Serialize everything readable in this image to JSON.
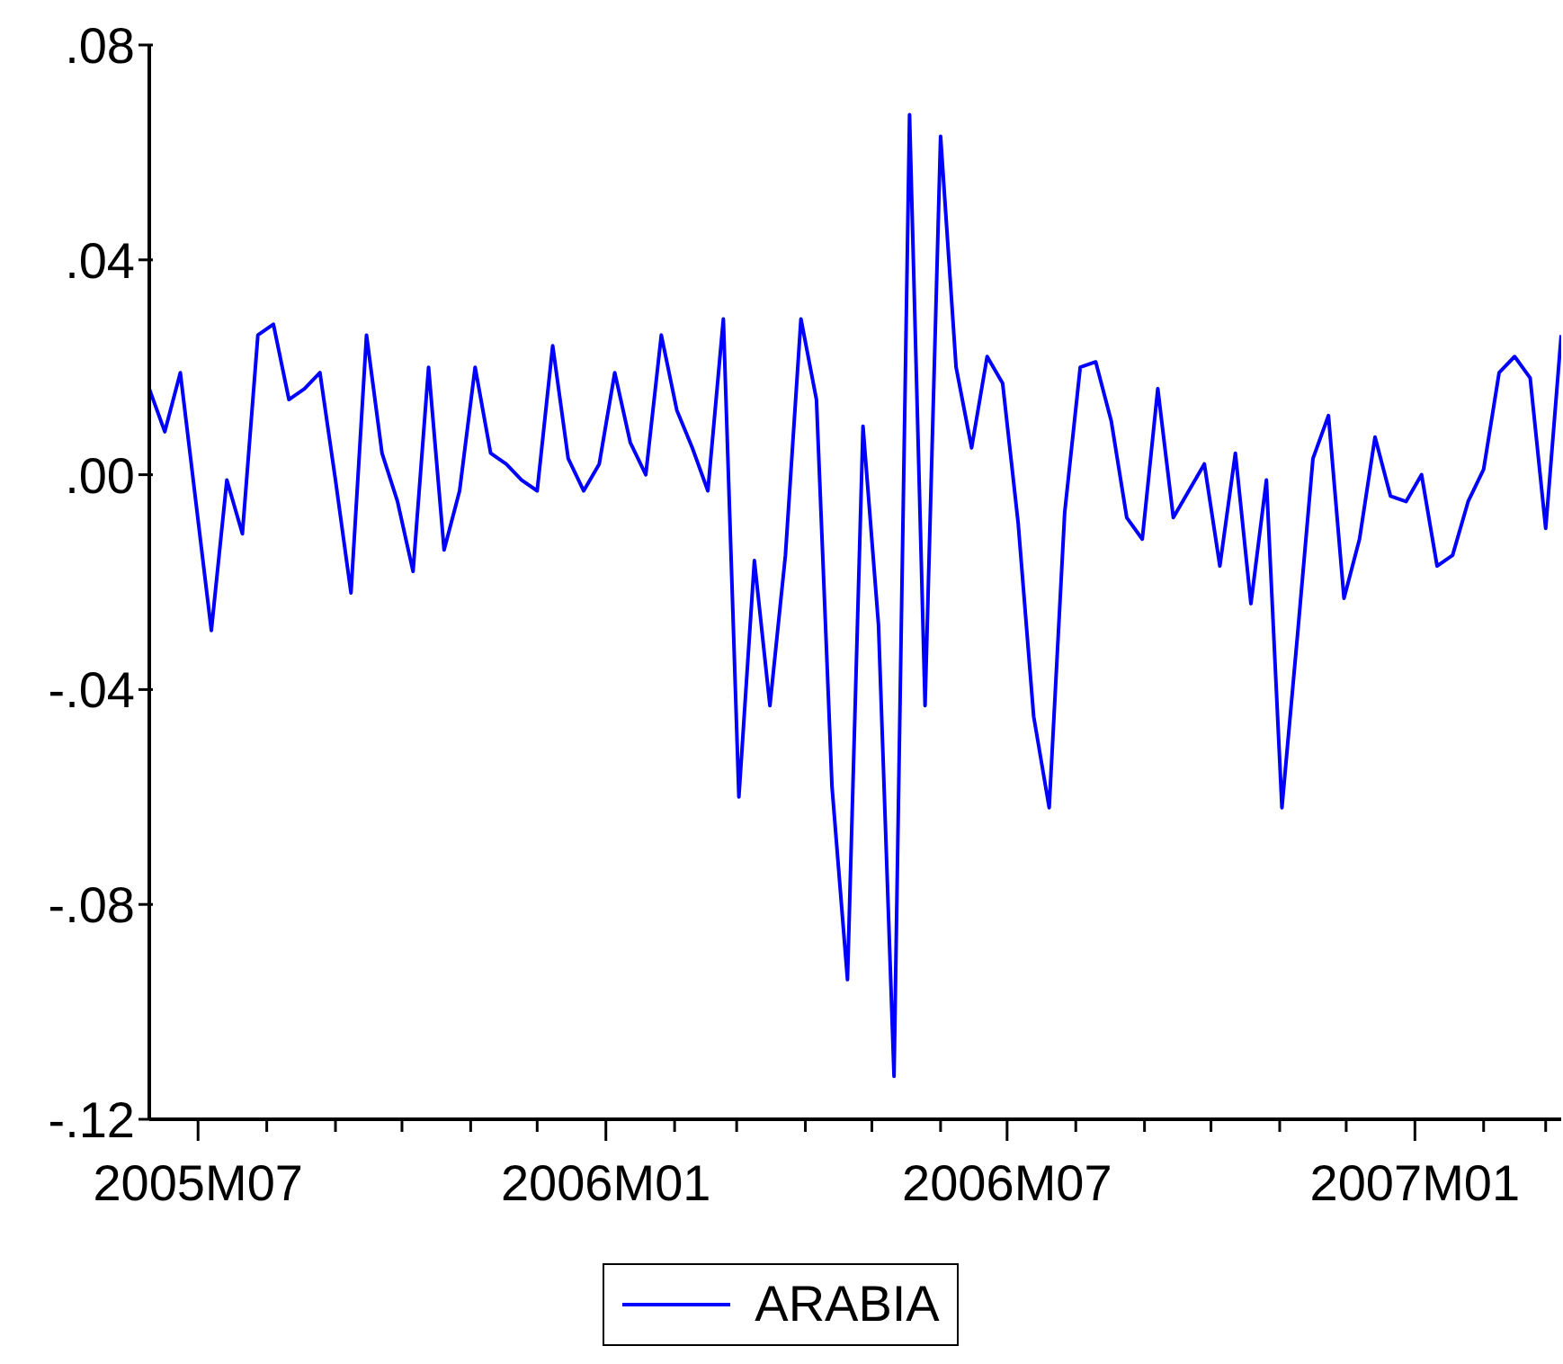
{
  "chart_data": {
    "type": "line",
    "x": [
      "2005-06-09",
      "2005-06-16",
      "2005-06-23",
      "2005-06-30",
      "2005-07-07",
      "2005-07-14",
      "2005-07-21",
      "2005-07-28",
      "2005-08-04",
      "2005-08-11",
      "2005-08-18",
      "2005-08-25",
      "2005-09-01",
      "2005-09-08",
      "2005-09-15",
      "2005-09-22",
      "2005-09-29",
      "2005-10-06",
      "2005-10-13",
      "2005-10-20",
      "2005-10-27",
      "2005-11-03",
      "2005-11-10",
      "2005-11-17",
      "2005-11-24",
      "2005-12-01",
      "2005-12-08",
      "2005-12-15",
      "2005-12-22",
      "2005-12-29",
      "2006-01-05",
      "2006-01-12",
      "2006-01-19",
      "2006-01-26",
      "2006-02-02",
      "2006-02-09",
      "2006-02-16",
      "2006-02-23",
      "2006-03-02",
      "2006-03-09",
      "2006-03-16",
      "2006-03-23",
      "2006-03-30",
      "2006-04-06",
      "2006-04-13",
      "2006-04-20",
      "2006-04-27",
      "2006-05-04",
      "2006-05-11",
      "2006-05-18",
      "2006-05-25",
      "2006-06-01",
      "2006-06-08",
      "2006-06-15",
      "2006-06-22",
      "2006-06-29",
      "2006-07-06",
      "2006-07-13",
      "2006-07-20",
      "2006-07-27",
      "2006-08-03",
      "2006-08-10",
      "2006-08-17",
      "2006-08-24",
      "2006-08-31",
      "2006-09-07",
      "2006-09-14",
      "2006-09-21",
      "2006-09-28",
      "2006-10-05",
      "2006-10-12",
      "2006-10-19",
      "2006-10-26",
      "2006-11-02",
      "2006-11-09",
      "2006-11-16",
      "2006-11-23",
      "2006-11-30",
      "2006-12-07",
      "2006-12-14",
      "2006-12-21",
      "2006-12-28",
      "2007-01-04",
      "2007-01-11",
      "2007-01-18",
      "2007-01-25",
      "2007-02-01",
      "2007-02-08",
      "2007-02-15",
      "2007-02-22",
      "2007-03-01",
      "2007-03-08"
    ],
    "series": [
      {
        "name": "ARABIA",
        "color": "#0000ff",
        "values": [
          0.016,
          0.008,
          0.019,
          -0.005,
          -0.029,
          -0.001,
          -0.011,
          0.026,
          0.028,
          0.014,
          0.016,
          0.019,
          -0.001,
          -0.022,
          0.026,
          0.004,
          -0.005,
          -0.018,
          0.02,
          -0.014,
          -0.003,
          0.02,
          0.004,
          0.002,
          -0.001,
          -0.003,
          0.024,
          0.003,
          -0.003,
          0.002,
          0.019,
          0.006,
          0.0,
          0.026,
          0.012,
          0.005,
          -0.003,
          0.029,
          -0.06,
          -0.016,
          -0.043,
          -0.015,
          0.029,
          0.014,
          -0.058,
          -0.094,
          0.009,
          -0.028,
          -0.112,
          0.067,
          -0.043,
          0.063,
          0.02,
          0.005,
          0.022,
          0.017,
          -0.009,
          -0.045,
          -0.062,
          -0.007,
          0.02,
          0.021,
          0.01,
          -0.008,
          -0.012,
          0.016,
          -0.008,
          -0.003,
          0.002,
          -0.017,
          0.004,
          -0.024,
          -0.001,
          -0.062,
          -0.03,
          0.003,
          0.011,
          -0.023,
          -0.012,
          0.007,
          -0.004,
          -0.005,
          0.0,
          -0.017,
          -0.015,
          -0.005,
          0.001,
          0.019,
          0.022,
          0.018,
          -0.01,
          0.026
        ]
      }
    ],
    "xlim": [
      "2005-06-09",
      "2007-03-08"
    ],
    "xticks": [
      {
        "value": "2005-07-01",
        "label": "2005M07"
      },
      {
        "value": "2005-08-01",
        "label": null
      },
      {
        "value": "2005-09-01",
        "label": null
      },
      {
        "value": "2005-10-01",
        "label": null
      },
      {
        "value": "2005-11-01",
        "label": null
      },
      {
        "value": "2005-12-01",
        "label": null
      },
      {
        "value": "2006-01-01",
        "label": "2006M01"
      },
      {
        "value": "2006-02-01",
        "label": null
      },
      {
        "value": "2006-03-01",
        "label": null
      },
      {
        "value": "2006-04-01",
        "label": null
      },
      {
        "value": "2006-05-01",
        "label": null
      },
      {
        "value": "2006-06-01",
        "label": null
      },
      {
        "value": "2006-07-01",
        "label": "2006M07"
      },
      {
        "value": "2006-08-01",
        "label": null
      },
      {
        "value": "2006-09-01",
        "label": null
      },
      {
        "value": "2006-10-01",
        "label": null
      },
      {
        "value": "2006-11-01",
        "label": null
      },
      {
        "value": "2006-12-01",
        "label": null
      },
      {
        "value": "2007-01-01",
        "label": "2007M01"
      },
      {
        "value": "2007-02-01",
        "label": null
      },
      {
        "value": "2007-03-01",
        "label": null
      }
    ],
    "ylim": [
      -0.12,
      0.08
    ],
    "yticks": [
      {
        "value": -0.12,
        "label": "-.12"
      },
      {
        "value": -0.08,
        "label": "-.08"
      },
      {
        "value": -0.04,
        "label": "-.04"
      },
      {
        "value": 0,
        "label": ".00"
      },
      {
        "value": 0.04,
        "label": ".04"
      },
      {
        "value": 0.08,
        "label": ".08"
      }
    ],
    "legend": "bottom"
  }
}
